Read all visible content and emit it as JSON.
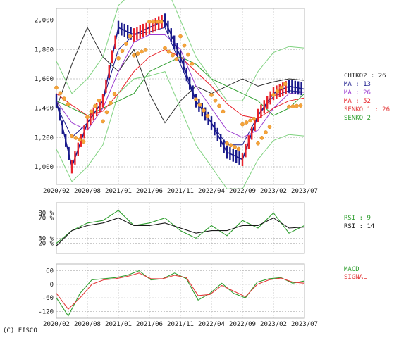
{
  "copyright": "(C) FISCO",
  "colors": {
    "grid": "#b8b8b8",
    "price_up": "#e8222a",
    "price_down": "#1a1a8c",
    "ma_short": "#1a1a8c",
    "ma_long": "#9b3bd0",
    "bollinger": "#7fd27f",
    "sar": "#f6a43a",
    "chikou": "#2b2b2b",
    "senko2": "#2e9e2e",
    "senko1": "#e33a3a",
    "cloud": "#d0d0d0",
    "rsi9": "#2e9e2e",
    "rsi14": "#1a1a1a",
    "rsi_high": "#e33a3a",
    "rsi_low": "#3a3ae3",
    "macd": "#2e9e2e",
    "signal": "#e33a3a"
  },
  "x_axis": {
    "ticks": [
      "2020/02",
      "2020/08",
      "2021/01",
      "2021/06",
      "2021/11",
      "2022/04",
      "2022/09",
      "2023/02",
      "2023/07"
    ]
  },
  "chart_data": [
    {
      "type": "line",
      "panel": "price",
      "ylim": [
        880,
        2080
      ],
      "yticks": [
        "2,000",
        "1,800",
        "1,600",
        "1,400",
        "1,200",
        "1,000"
      ],
      "ytick_values": [
        2000,
        1800,
        1600,
        1400,
        1200,
        1000
      ],
      "x": [
        "2020/02",
        "2020/05",
        "2020/08",
        "2020/11",
        "2021/01",
        "2021/04",
        "2021/06",
        "2021/09",
        "2021/11",
        "2022/02",
        "2022/04",
        "2022/07",
        "2022/09",
        "2022/12",
        "2023/02",
        "2023/05",
        "2023/07"
      ],
      "series": [
        {
          "name": "Price",
          "values": [
            1450,
            1000,
            1300,
            1450,
            1950,
            1900,
            1950,
            2000,
            1750,
            1450,
            1300,
            1100,
            1050,
            1350,
            1500,
            1550,
            1530
          ]
        },
        {
          "name": "CHIKOU",
          "values": [
            1400,
            1700,
            1950,
            1750,
            1650,
            1800,
            1500,
            1300,
            1450,
            1550,
            1500,
            1550,
            1600,
            1550,
            1580,
            1600,
            1590
          ]
        },
        {
          "name": "SENKO 2",
          "values": [
            1450,
            1400,
            1350,
            1400,
            1450,
            1500,
            1650,
            1700,
            1750,
            1700,
            1600,
            1550,
            1500,
            1450,
            1350,
            1400,
            1500
          ]
        },
        {
          "name": "MA 13",
          "values": [
            1420,
            1200,
            1300,
            1450,
            1800,
            1900,
            1920,
            1950,
            1700,
            1450,
            1300,
            1150,
            1150,
            1350,
            1480,
            1520,
            1510
          ]
        },
        {
          "name": "MA 26",
          "values": [
            1450,
            1300,
            1250,
            1400,
            1650,
            1850,
            1900,
            1900,
            1800,
            1550,
            1400,
            1250,
            1200,
            1250,
            1400,
            1500,
            1510
          ]
        },
        {
          "name": "MA 52",
          "values": [
            1500,
            1420,
            1350,
            1380,
            1500,
            1650,
            1750,
            1800,
            1750,
            1650,
            1550,
            1430,
            1350,
            1330,
            1400,
            1450,
            1470
          ]
        }
      ],
      "annotations": [
        {
          "text": "CHIKO",
          "value": "2 : 26"
        },
        {
          "text": "MA : 13"
        },
        {
          "text": "MA : 26"
        },
        {
          "text": "MA : 52"
        },
        {
          "text": "SENKO 1 : 26"
        },
        {
          "text": "SENKO 2"
        }
      ]
    },
    {
      "type": "line",
      "panel": "rsi",
      "ylim": [
        0,
        100
      ],
      "yticks": [
        "80 %",
        "70 %",
        "30 %",
        "20 %"
      ],
      "ytick_values": [
        80,
        70,
        30,
        20
      ],
      "x": [
        "2020/02",
        "2020/05",
        "2020/08",
        "2020/11",
        "2021/01",
        "2021/04",
        "2021/06",
        "2021/09",
        "2021/11",
        "2022/02",
        "2022/04",
        "2022/07",
        "2022/09",
        "2022/12",
        "2023/02",
        "2023/05",
        "2023/07"
      ],
      "series": [
        {
          "name": "RSI : 9",
          "values": [
            20,
            45,
            60,
            65,
            85,
            55,
            60,
            70,
            45,
            30,
            55,
            35,
            65,
            50,
            80,
            40,
            55
          ]
        },
        {
          "name": "RSI : 14",
          "values": [
            15,
            45,
            55,
            60,
            70,
            55,
            55,
            60,
            50,
            40,
            45,
            45,
            55,
            55,
            70,
            50,
            52
          ]
        }
      ]
    },
    {
      "type": "line",
      "panel": "macd",
      "ylim": [
        -150,
        90
      ],
      "yticks": [
        "60",
        "0",
        "-60",
        "-120"
      ],
      "ytick_values": [
        60,
        0,
        -60,
        -120
      ],
      "x": [
        "2020/02",
        "2020/04",
        "2020/06",
        "2020/08",
        "2020/10",
        "2020/12",
        "2021/02",
        "2021/04",
        "2021/06",
        "2021/08",
        "2021/10",
        "2021/12",
        "2022/02",
        "2022/04",
        "2022/06",
        "2022/08",
        "2022/10",
        "2022/12",
        "2023/02",
        "2023/04",
        "2023/06",
        "2023/07"
      ],
      "series": [
        {
          "name": "MACD",
          "values": [
            -60,
            -140,
            -40,
            20,
            25,
            30,
            40,
            60,
            20,
            25,
            50,
            25,
            -70,
            -40,
            5,
            -40,
            -60,
            10,
            25,
            30,
            5,
            15
          ]
        },
        {
          "name": "SIGNAL",
          "values": [
            -40,
            -110,
            -60,
            0,
            20,
            25,
            35,
            50,
            25,
            25,
            40,
            30,
            -50,
            -45,
            -5,
            -30,
            -55,
            0,
            20,
            28,
            10,
            5
          ]
        }
      ]
    }
  ],
  "rsi_legend": {
    "rsi9": "RSI : 9",
    "rsi14": "RSI : 14"
  },
  "macd_legend": {
    "macd": "MACD",
    "signal": "SIGNAL"
  },
  "price_legend": {
    "senko2": "SENKO 2"
  }
}
